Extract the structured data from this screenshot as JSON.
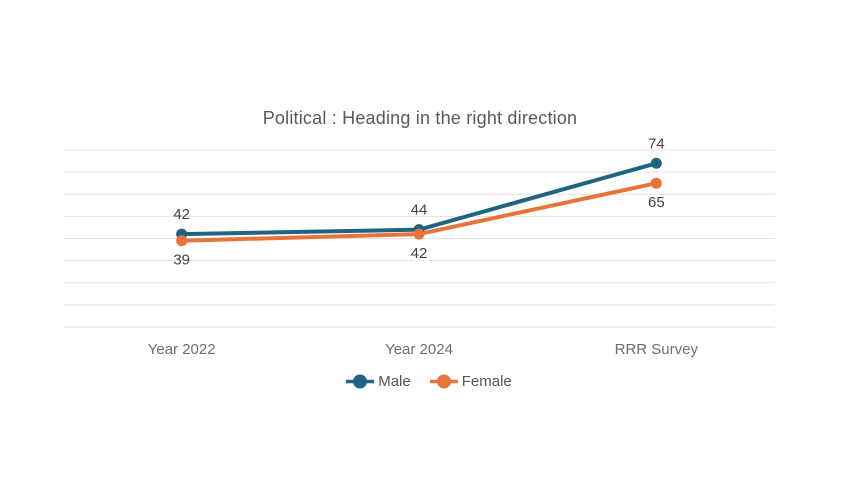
{
  "chart_data": {
    "type": "line",
    "title": "Political : Heading in the right direction",
    "categories": [
      "Year 2022",
      "Year 2024",
      "RRR Survey"
    ],
    "series": [
      {
        "name": "Male",
        "color": "#1f6581",
        "values": [
          42,
          44,
          74
        ],
        "label_position": "above"
      },
      {
        "name": "Female",
        "color": "#e8743b",
        "values": [
          39,
          42,
          65
        ],
        "label_position": "below"
      }
    ],
    "ylim": [
      0,
      80
    ],
    "grid_step": 10,
    "grid": true,
    "data_labels": true,
    "legend_position": "bottom",
    "xlabel": "",
    "ylabel": ""
  },
  "colors": {
    "background": "#ffffff",
    "gridline": "#e2e2e2",
    "title_text": "#58595b",
    "data_label_text": "#444444",
    "axis_label_text": "#6e6e6e",
    "legend_text": "#555555"
  }
}
